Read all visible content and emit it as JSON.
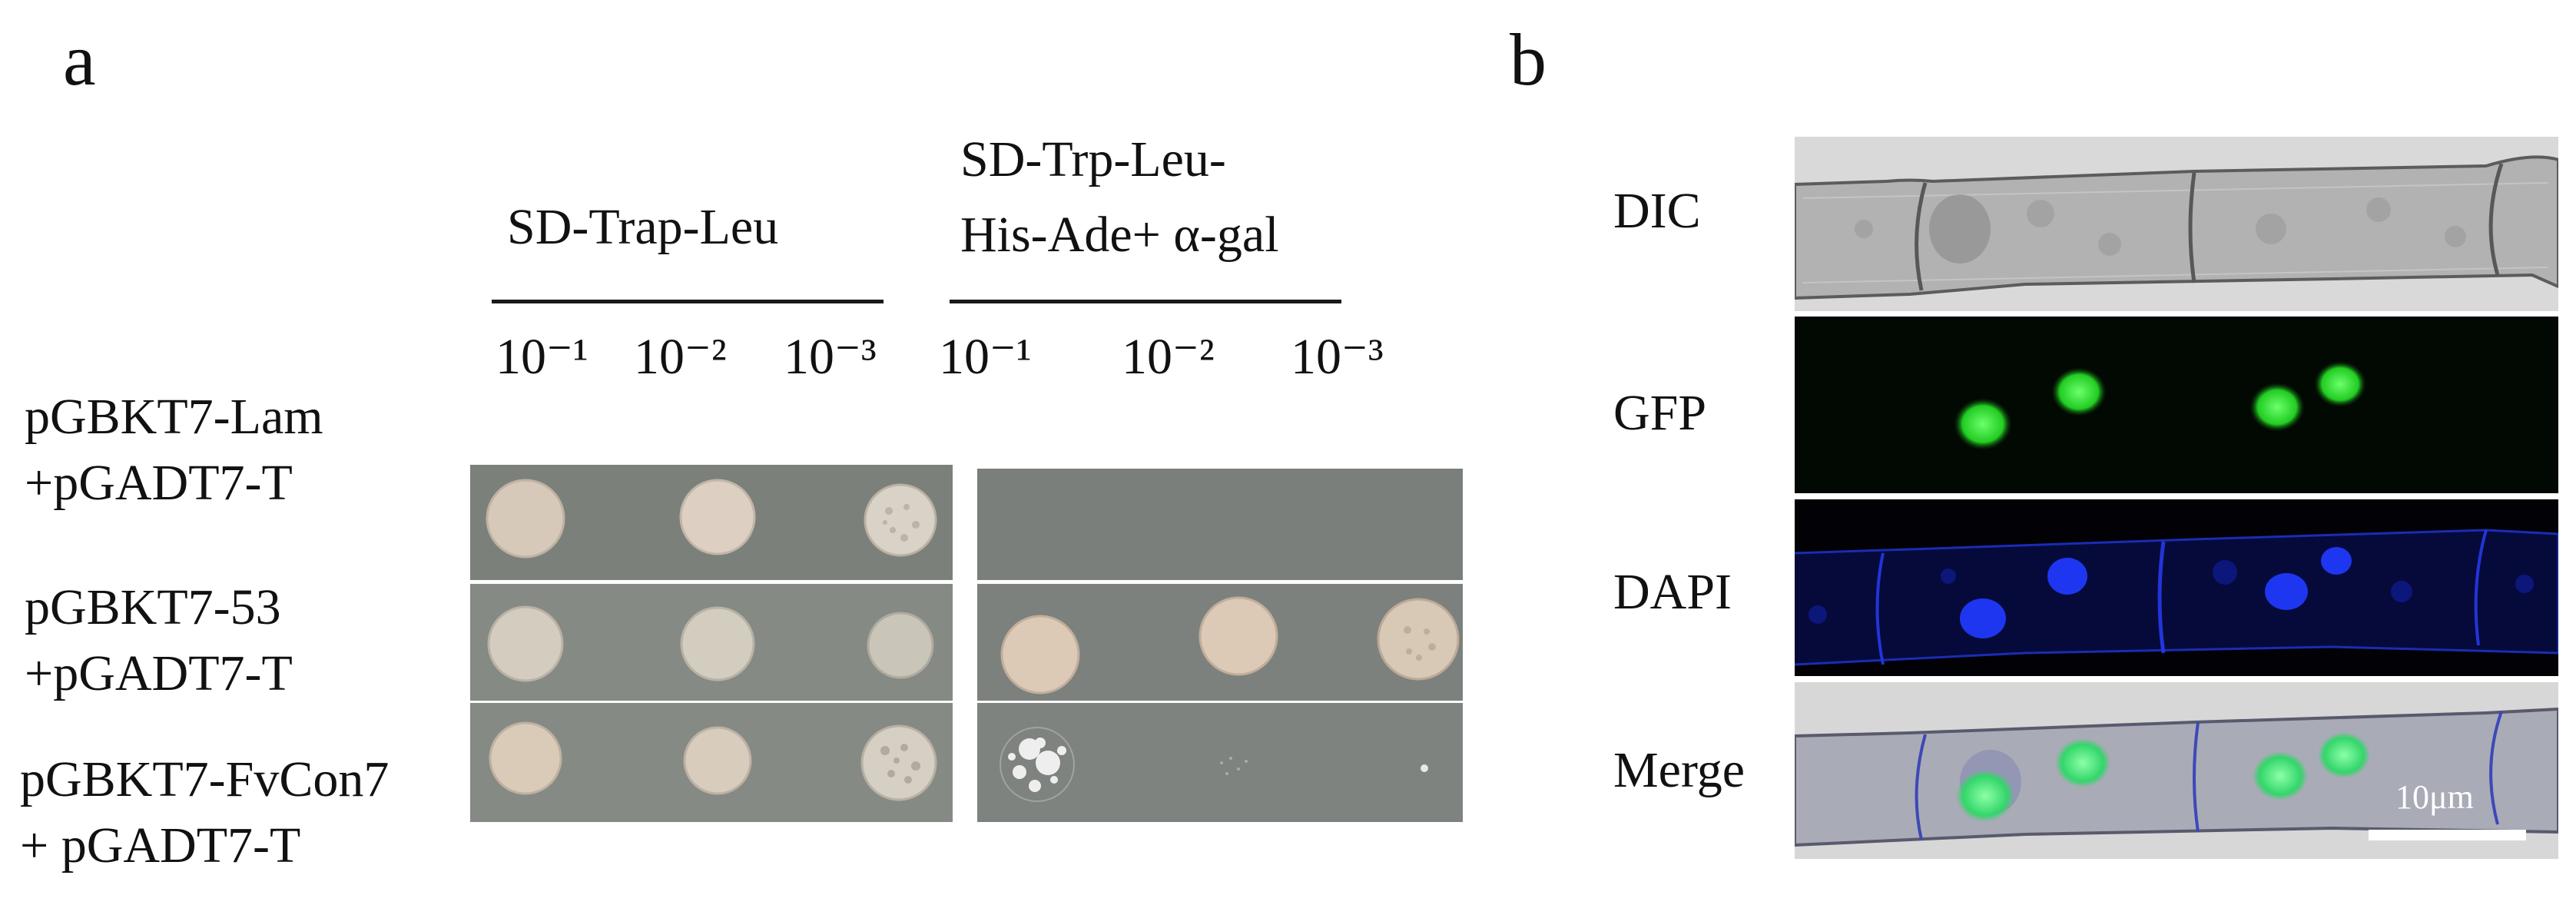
{
  "panel_a": {
    "letter": "a",
    "media": [
      {
        "name": "SD-Trap-Leu",
        "lines": [
          "SD-Trap-Leu"
        ]
      },
      {
        "name": "SD-Trp-Leu-His-Ade+ α-gal",
        "lines": [
          "SD-Trp-Leu-",
          "His-Ade+ α-gal"
        ]
      }
    ],
    "dilutions_left": [
      "10⁻¹",
      "10⁻²",
      "10⁻³"
    ],
    "dilutions_right": [
      "10⁻¹",
      "10⁻²",
      "10⁻³"
    ],
    "rows": [
      {
        "label": "pGBKT7-Lam\n+pGADT7-T",
        "left_growth": [
          1,
          1,
          1
        ],
        "right_growth": [
          0,
          0,
          0
        ]
      },
      {
        "label": "pGBKT7-53\n+pGADT7-T",
        "left_growth": [
          1,
          1,
          1
        ],
        "right_growth": [
          1,
          1,
          1
        ]
      },
      {
        "label": "pGBKT7-FvCon7\n+ pGADT7-T",
        "left_growth": [
          1,
          1,
          1
        ],
        "right_growth": [
          0.3,
          0.1,
          0.05
        ]
      }
    ],
    "colors": {
      "plate": "#7c817c",
      "colony": "#dcccbb",
      "plate_border": "#ffffff"
    }
  },
  "panel_b": {
    "letter": "b",
    "channels": [
      "DIC",
      "GFP",
      "DAPI",
      "Merge"
    ],
    "scale_bar_label": "10μm",
    "colors": {
      "gfp": "#2bd23a",
      "dapi": "#1a2fe0",
      "dic": "#c9c9c9",
      "background": "#000000"
    }
  }
}
